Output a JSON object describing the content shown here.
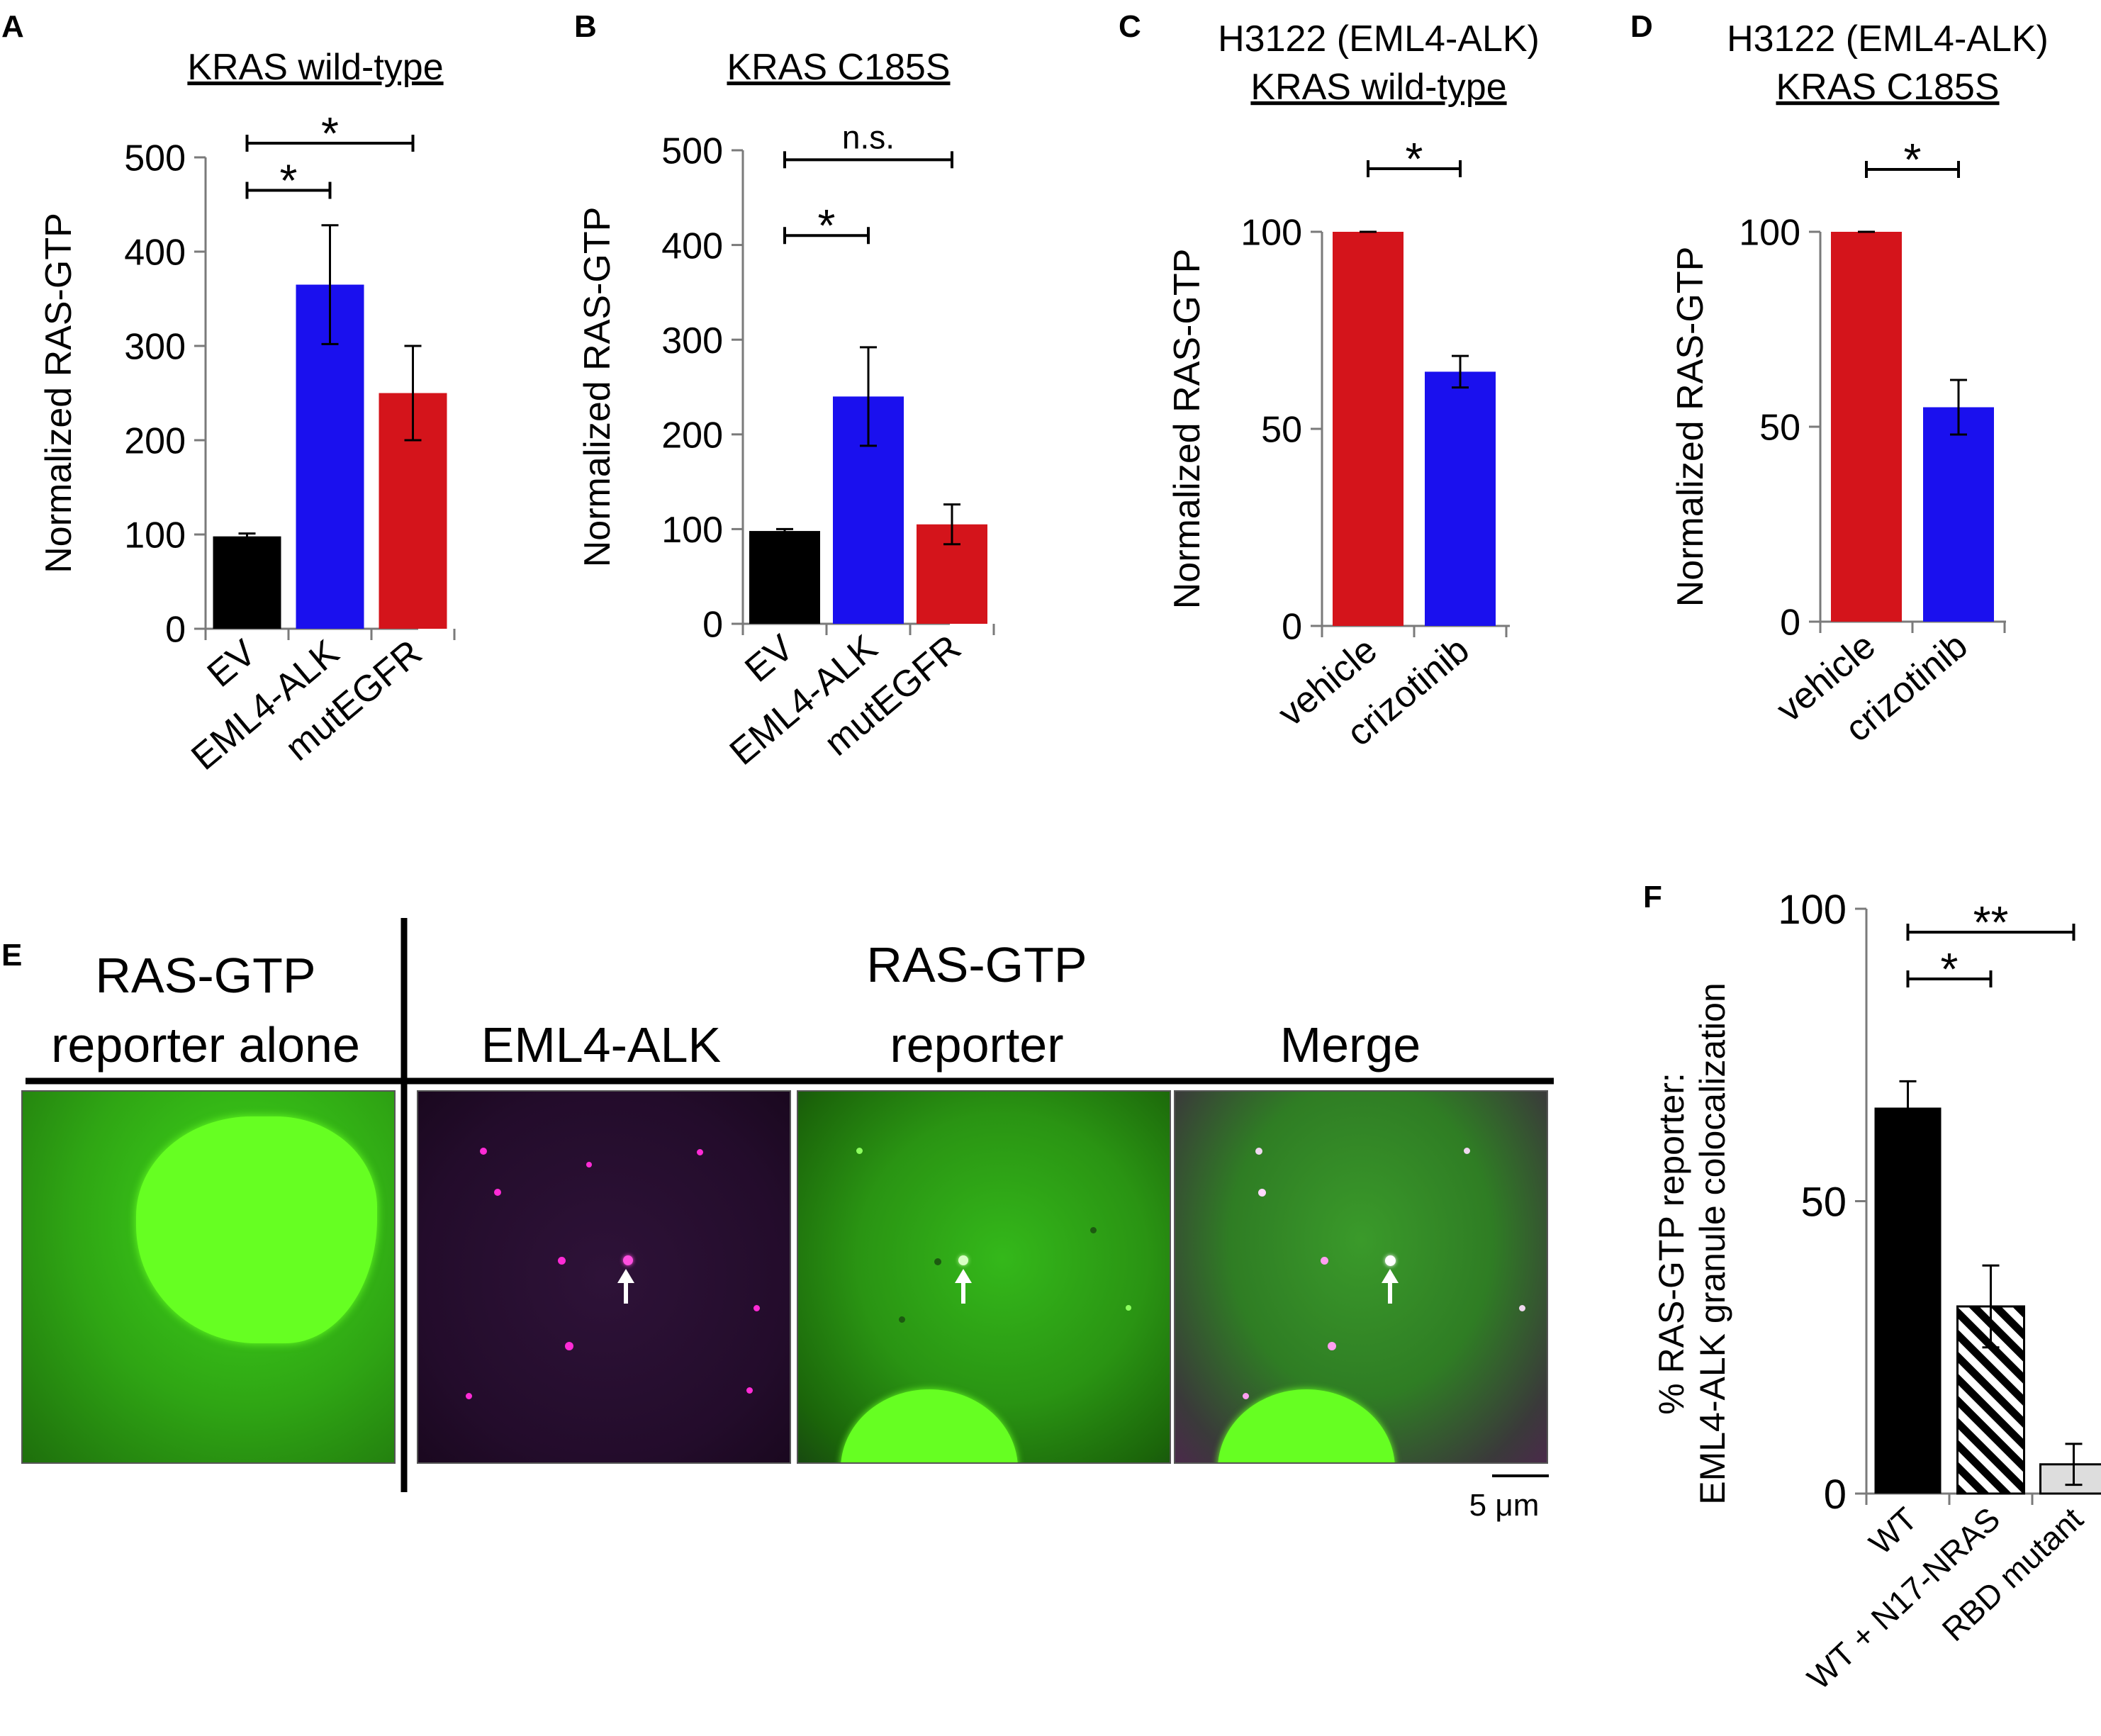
{
  "panels": {
    "A": {
      "letter": "A",
      "title": "KRAS wild-type",
      "chart_data": {
        "type": "bar",
        "title": "KRAS wild-type",
        "ylabel": "Normalized RAS-GTP",
        "ylim": [
          0,
          500
        ],
        "yticks": [
          "0",
          "100",
          "200",
          "300",
          "400",
          "500"
        ],
        "categories": [
          "EV",
          "EML4-ALK",
          "mutEGFR"
        ],
        "values": [
          98,
          365,
          250
        ],
        "errors": [
          3,
          63,
          50
        ],
        "colors": [
          "#000000",
          "#1a10ee",
          "#d4141b"
        ],
        "significance": [
          {
            "from": 0,
            "to": 1,
            "label": "*",
            "y": 465
          },
          {
            "from": 0,
            "to": 2,
            "label": "*",
            "y": 515
          }
        ]
      }
    },
    "B": {
      "letter": "B",
      "title": "KRAS C185S",
      "chart_data": {
        "type": "bar",
        "title": "KRAS C185S",
        "ylabel": "Normalized RAS-GTP",
        "ylim": [
          0,
          500
        ],
        "yticks": [
          "0",
          "100",
          "200",
          "300",
          "400",
          "500"
        ],
        "categories": [
          "EV",
          "EML4-ALK",
          "mutEGFR"
        ],
        "values": [
          98,
          240,
          105
        ],
        "errors": [
          2,
          52,
          21
        ],
        "colors": [
          "#000000",
          "#1a10ee",
          "#d4141b"
        ],
        "significance": [
          {
            "from": 0,
            "to": 1,
            "label": "*",
            "y": 410
          },
          {
            "from": 0,
            "to": 2,
            "label": "n.s.",
            "y": 490
          }
        ]
      }
    },
    "C": {
      "letter": "C",
      "title_line1": "H3122 (EML4-ALK)",
      "title_line2": "KRAS wild-type",
      "chart_data": {
        "type": "bar",
        "title": "H3122 (EML4-ALK) KRAS wild-type",
        "ylabel": "Normalized RAS-GTP",
        "ylim": [
          0,
          100
        ],
        "yticks": [
          "0",
          "50",
          "100"
        ],
        "categories": [
          "vehicle",
          "crizotinib"
        ],
        "values": [
          100,
          64.5
        ],
        "errors": [
          0,
          4
        ],
        "colors": [
          "#d4141b",
          "#1a10ee"
        ],
        "significance": [
          {
            "from": 0,
            "to": 1,
            "label": "*",
            "y": 116
          }
        ]
      }
    },
    "D": {
      "letter": "D",
      "title_line1": "H3122 (EML4-ALK)",
      "title_line2": "KRAS C185S",
      "chart_data": {
        "type": "bar",
        "title": "H3122 (EML4-ALK) KRAS C185S",
        "ylabel": "Normalized RAS-GTP",
        "ylim": [
          0,
          100
        ],
        "yticks": [
          "0",
          "50",
          "100"
        ],
        "categories": [
          "vehicle",
          "crizotinib"
        ],
        "values": [
          100,
          55
        ],
        "errors": [
          0,
          7
        ],
        "colors": [
          "#d4141b",
          "#1a10ee"
        ],
        "significance": [
          {
            "from": 0,
            "to": 1,
            "label": "*",
            "y": 116
          }
        ]
      }
    },
    "E": {
      "letter": "E",
      "left_header_line1": "RAS-GTP",
      "left_header_line2": "reporter alone",
      "group_header": "RAS-GTP",
      "col1": "EML4-ALK",
      "col2": "reporter",
      "col3": "Merge",
      "scale_bar": "5 μm"
    },
    "F": {
      "letter": "F",
      "chart_data": {
        "type": "bar",
        "ylabel_line1": "% RAS-GTP reporter:",
        "ylabel_line2": "EML4-ALK granule colocalization",
        "ylim": [
          0,
          100
        ],
        "yticks": [
          "0",
          "50",
          "100"
        ],
        "categories": [
          "WT",
          "WT + N17-NRAS",
          "RBD mutant"
        ],
        "values": [
          66,
          32,
          5
        ],
        "errors": [
          4.5,
          7,
          3.5
        ],
        "colors": [
          "#000000",
          "hatched",
          "#dddddd"
        ],
        "significance": [
          {
            "from": 0,
            "to": 1,
            "label": "*",
            "y": 88
          },
          {
            "from": 0,
            "to": 2,
            "label": "**",
            "y": 96
          }
        ]
      }
    }
  }
}
